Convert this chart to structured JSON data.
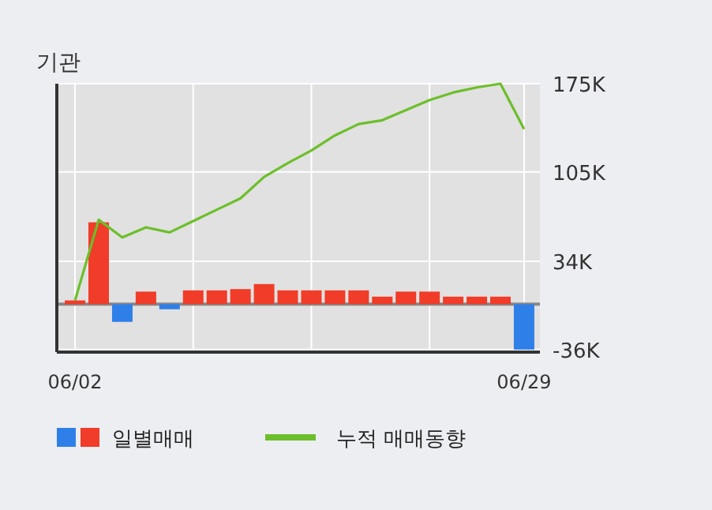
{
  "chart_data": {
    "type": "bar",
    "title": "기관",
    "categories": [
      "06/02",
      null,
      null,
      null,
      null,
      null,
      null,
      null,
      null,
      null,
      null,
      null,
      null,
      null,
      null,
      null,
      null,
      null,
      null,
      "06/29"
    ],
    "series": [
      {
        "name": "일별매매",
        "values": [
          3,
          65,
          -14,
          10,
          -4,
          11,
          11,
          12,
          16,
          11,
          11,
          11,
          11,
          6,
          10,
          10,
          6,
          6,
          6,
          -36
        ],
        "colors": [
          "#f03c28",
          "#f03c28",
          "#2f7fe8",
          "#f03c28",
          "#2f7fe8",
          "#f03c28",
          "#f03c28",
          "#f03c28",
          "#f03c28",
          "#f03c28",
          "#f03c28",
          "#f03c28",
          "#f03c28",
          "#f03c28",
          "#f03c28",
          "#f03c28",
          "#f03c28",
          "#f03c28",
          "#f03c28",
          "#2f7fe8"
        ]
      },
      {
        "name": "누적 매매동향",
        "type": "line",
        "color": "#6cbf2a",
        "values": [
          3,
          67,
          53,
          61,
          57,
          66,
          75,
          84,
          101,
          112,
          122,
          134,
          143,
          146,
          154,
          162,
          168,
          172,
          175,
          139
        ]
      }
    ],
    "ylim": [
      -38,
      175
    ],
    "yticks": [
      {
        "value": 175,
        "label": "175K"
      },
      {
        "value": 105,
        "label": "105K"
      },
      {
        "value": 34,
        "label": "34K"
      },
      {
        "value": -36,
        "label": "-36K"
      }
    ],
    "grid": true,
    "legend": "bottom",
    "marker": "none",
    "line_style": "solid"
  }
}
